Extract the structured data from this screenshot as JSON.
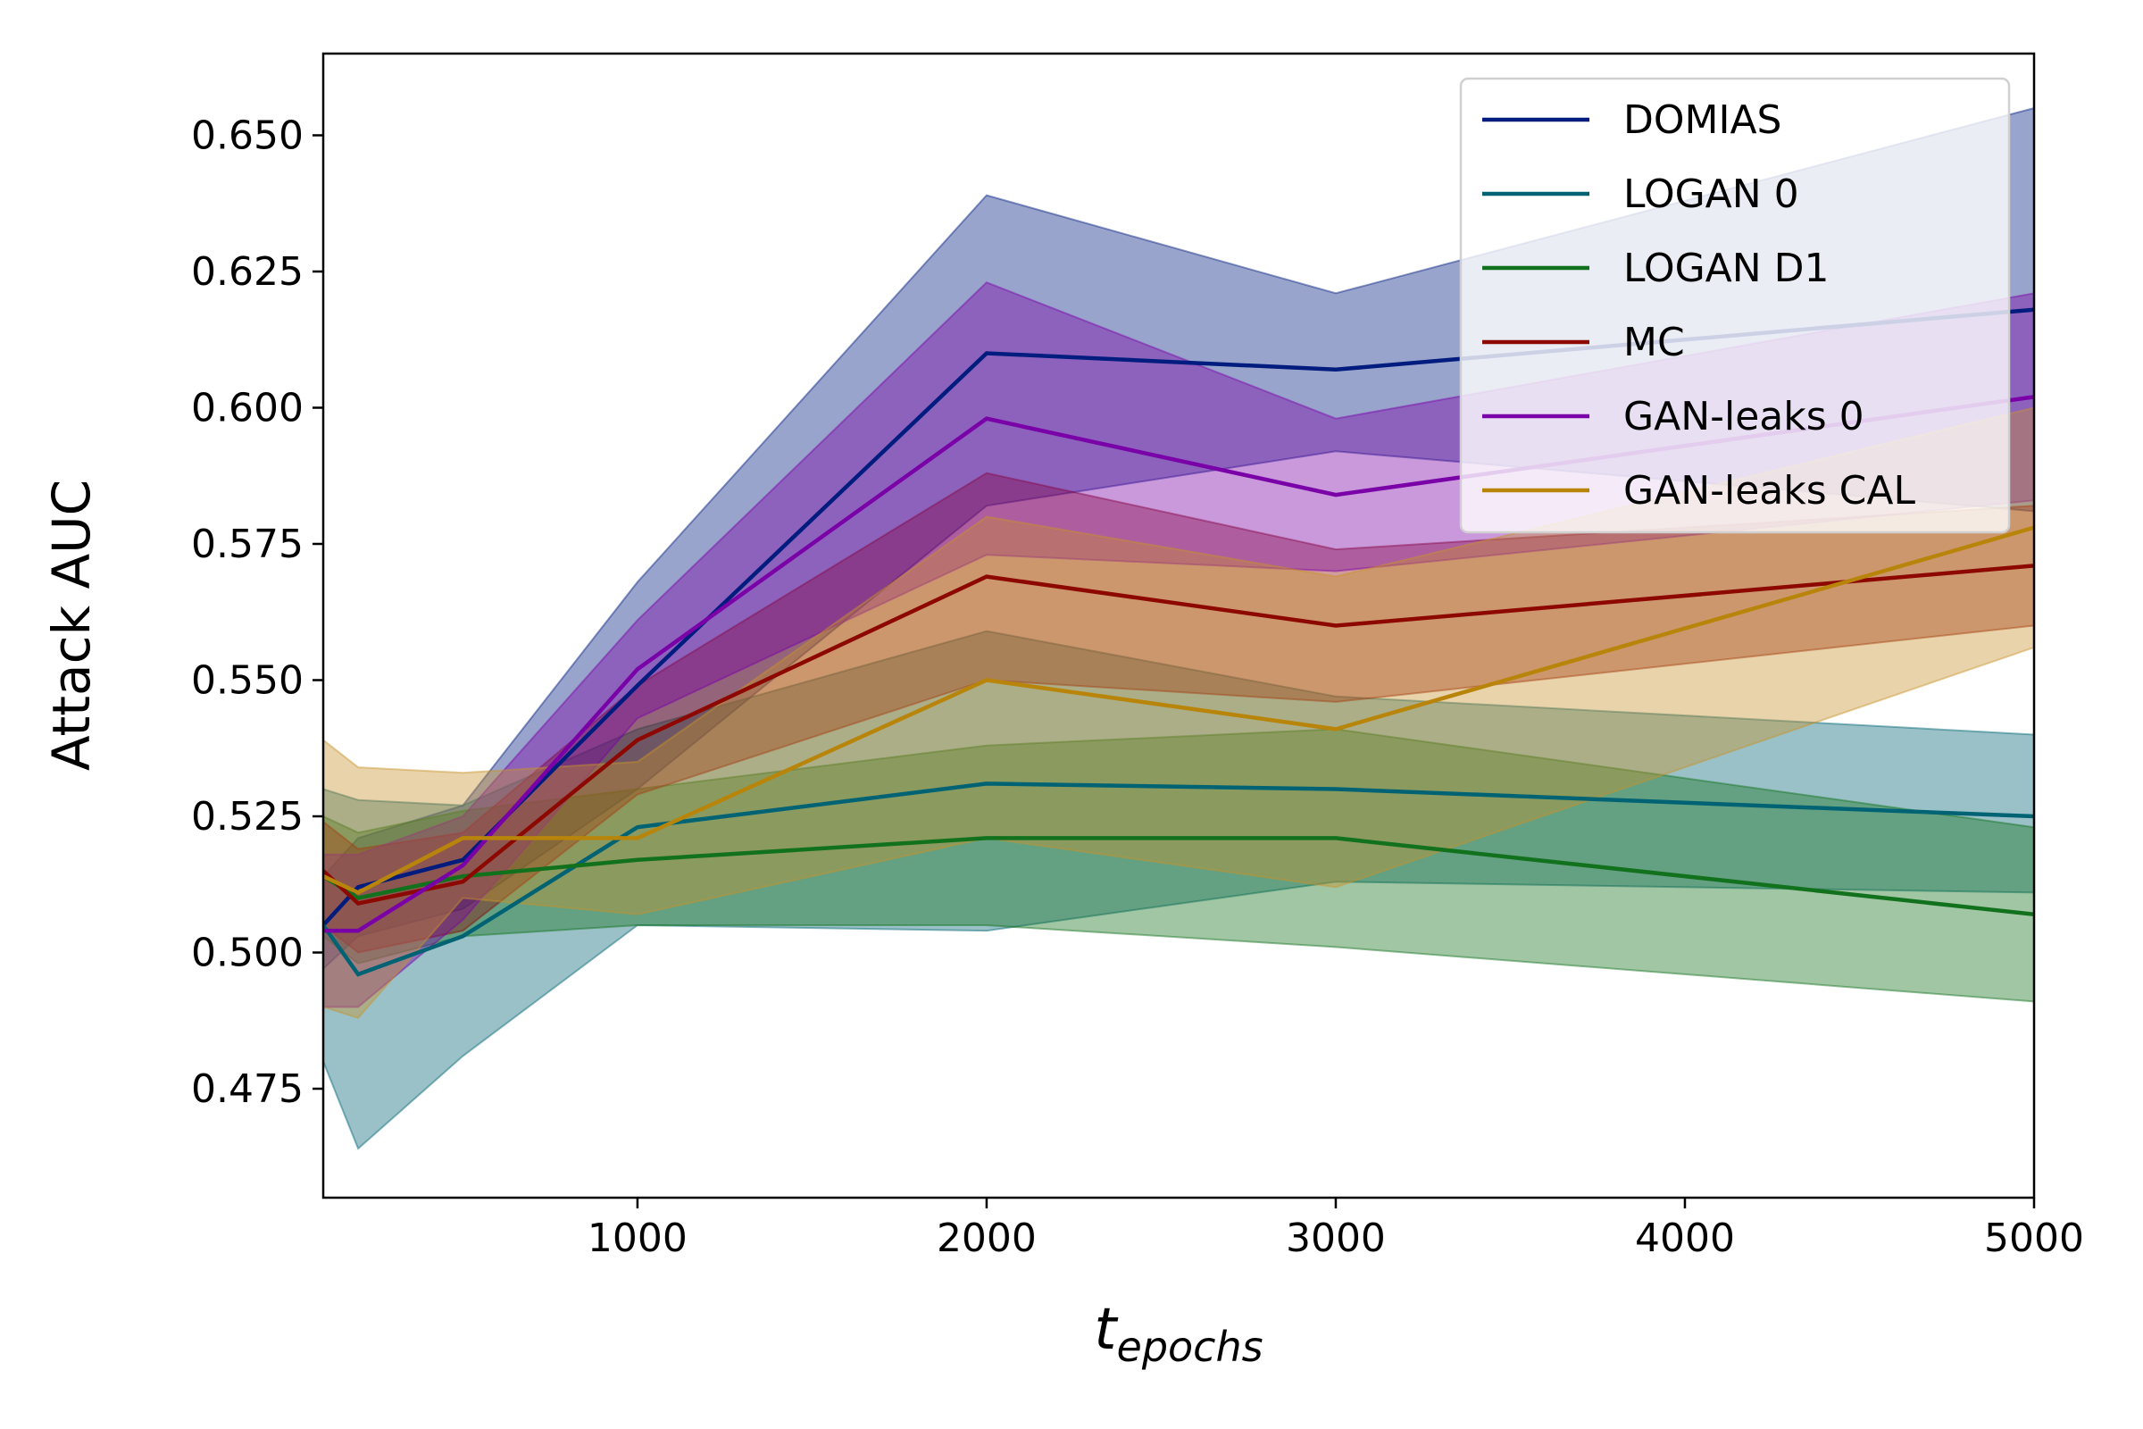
{
  "chart_data": {
    "type": "line",
    "title": "",
    "xlabel_main": "t",
    "xlabel_sub": "epochs",
    "ylabel": "Attack AUC",
    "xlim": [
      100,
      5000
    ],
    "ylim": [
      0.455,
      0.665
    ],
    "xticks": [
      1000,
      2000,
      3000,
      4000,
      5000
    ],
    "xtick_labels": [
      "1000",
      "2000",
      "3000",
      "4000",
      "5000"
    ],
    "yticks": [
      0.475,
      0.5,
      0.525,
      0.55,
      0.575,
      0.6,
      0.625,
      0.65
    ],
    "ytick_labels": [
      "0.475",
      "0.500",
      "0.525",
      "0.550",
      "0.575",
      "0.600",
      "0.625",
      "0.650"
    ],
    "legend_position": "top-right",
    "x": [
      100,
      200,
      500,
      1000,
      2000,
      3000,
      5000
    ],
    "series": [
      {
        "name": "DOMIAS",
        "color": "#001c7f",
        "fill": "#001c7f",
        "values": [
          0.505,
          0.512,
          0.517,
          0.549,
          0.61,
          0.607,
          0.618
        ],
        "lower": [
          0.497,
          0.503,
          0.508,
          0.53,
          0.582,
          0.592,
          0.581
        ],
        "upper": [
          0.514,
          0.521,
          0.527,
          0.568,
          0.639,
          0.621,
          0.655
        ]
      },
      {
        "name": "LOGAN 0",
        "color": "#006374",
        "fill": "#006374",
        "values": [
          0.505,
          0.496,
          0.503,
          0.523,
          0.531,
          0.53,
          0.525
        ],
        "lower": [
          0.48,
          0.464,
          0.481,
          0.505,
          0.504,
          0.513,
          0.511
        ],
        "upper": [
          0.53,
          0.528,
          0.527,
          0.541,
          0.559,
          0.547,
          0.54
        ]
      },
      {
        "name": "LOGAN D1",
        "color": "#12711c",
        "fill": "#12711c",
        "values": [
          0.514,
          0.51,
          0.514,
          0.517,
          0.521,
          0.521,
          0.507
        ],
        "lower": [
          0.503,
          0.498,
          0.503,
          0.505,
          0.505,
          0.501,
          0.491
        ],
        "upper": [
          0.525,
          0.522,
          0.526,
          0.53,
          0.538,
          0.541,
          0.523
        ]
      },
      {
        "name": "MC",
        "color": "#8c0800",
        "fill": "#8c0800",
        "values": [
          0.515,
          0.509,
          0.513,
          0.539,
          0.569,
          0.56,
          0.571
        ],
        "lower": [
          0.505,
          0.5,
          0.504,
          0.529,
          0.55,
          0.546,
          0.56
        ],
        "upper": [
          0.524,
          0.519,
          0.522,
          0.549,
          0.588,
          0.574,
          0.582
        ]
      },
      {
        "name": "GAN-leaks 0",
        "color": "#591e71",
        "fill": "#7a00a8",
        "line_color": "#7a00a8",
        "values": [
          0.504,
          0.504,
          0.516,
          0.552,
          0.598,
          0.584,
          0.602
        ],
        "lower": [
          0.49,
          0.49,
          0.506,
          0.543,
          0.573,
          0.57,
          0.583
        ],
        "upper": [
          0.518,
          0.518,
          0.525,
          0.561,
          0.623,
          0.598,
          0.621
        ]
      },
      {
        "name": "GAN-leaks CAL",
        "color": "#b8850a",
        "fill": "#c8922a",
        "values": [
          0.514,
          0.511,
          0.521,
          0.521,
          0.55,
          0.541,
          0.578
        ],
        "lower": [
          0.49,
          0.488,
          0.51,
          0.507,
          0.521,
          0.512,
          0.556
        ],
        "upper": [
          0.539,
          0.534,
          0.533,
          0.535,
          0.58,
          0.569,
          0.6
        ]
      }
    ]
  }
}
